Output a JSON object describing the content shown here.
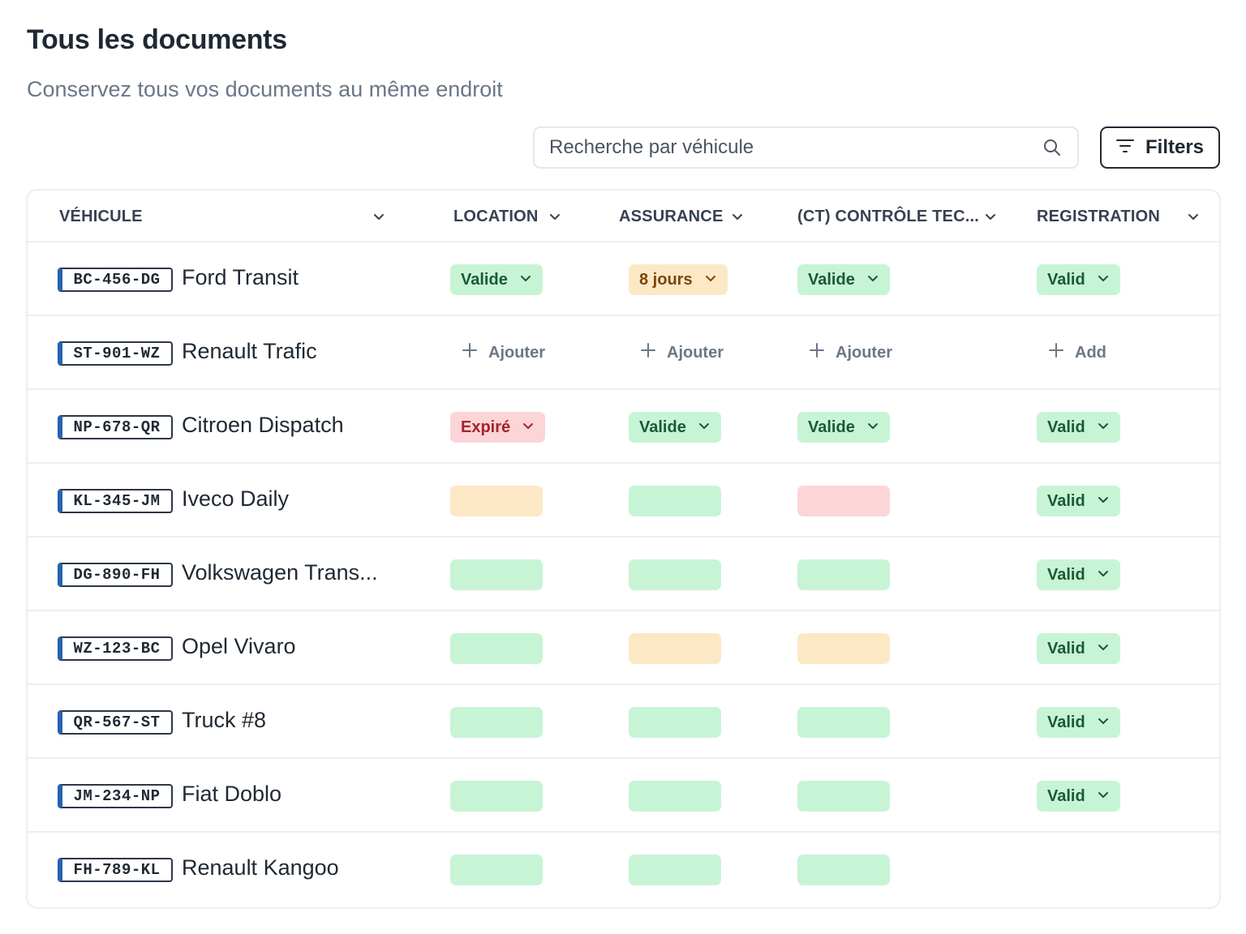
{
  "header": {
    "title": "Tous les documents",
    "subtitle": "Conservez tous vos documents au même endroit"
  },
  "search": {
    "placeholder": "Recherche par véhicule",
    "value": ""
  },
  "filters_label": "Filters",
  "columns": {
    "vehicle": "VÉHICULE",
    "location": "LOCATION",
    "assurance": "ASSURANCE",
    "ct": "(CT) CONTRÔLE TEC...",
    "registration": "REGISTRATION"
  },
  "rows": [
    {
      "plate": "BC-456-DG",
      "name": "Ford Transit",
      "location": {
        "label": "Valide",
        "status": "green"
      },
      "assurance": {
        "label": "8 jours",
        "status": "amber"
      },
      "ct": {
        "label": "Valide",
        "status": "green"
      },
      "registration": {
        "label": "Valid",
        "status": "green"
      }
    },
    {
      "plate": "ST-901-WZ",
      "name": "Renault Trafic",
      "location": {
        "add": "Ajouter"
      },
      "assurance": {
        "add": "Ajouter"
      },
      "ct": {
        "add": "Ajouter"
      },
      "registration": {
        "add": "Add"
      }
    },
    {
      "plate": "NP-678-QR",
      "name": "Citroen Dispatch",
      "location": {
        "label": "Expiré",
        "status": "red"
      },
      "assurance": {
        "label": "Valide",
        "status": "green"
      },
      "ct": {
        "label": "Valide",
        "status": "green"
      },
      "registration": {
        "label": "Valid",
        "status": "green"
      }
    },
    {
      "plate": "KL-345-JM",
      "name": "Iveco Daily",
      "location": {
        "status": "amber"
      },
      "assurance": {
        "status": "green"
      },
      "ct": {
        "status": "red"
      },
      "registration": {
        "label": "Valid",
        "status": "green"
      }
    },
    {
      "plate": "DG-890-FH",
      "name": "Volkswagen Trans...",
      "location": {
        "status": "green"
      },
      "assurance": {
        "status": "green"
      },
      "ct": {
        "status": "green"
      },
      "registration": {
        "label": "Valid",
        "status": "green"
      }
    },
    {
      "plate": "WZ-123-BC",
      "name": "Opel Vivaro",
      "location": {
        "status": "green"
      },
      "assurance": {
        "status": "amber"
      },
      "ct": {
        "status": "amber"
      },
      "registration": {
        "label": "Valid",
        "status": "green"
      }
    },
    {
      "plate": "QR-567-ST",
      "name": "Truck #8",
      "location": {
        "status": "green"
      },
      "assurance": {
        "status": "green"
      },
      "ct": {
        "status": "green"
      },
      "registration": {
        "label": "Valid",
        "status": "green"
      }
    },
    {
      "plate": "JM-234-NP",
      "name": "Fiat Doblo",
      "location": {
        "status": "green"
      },
      "assurance": {
        "status": "green"
      },
      "ct": {
        "status": "green"
      },
      "registration": {
        "label": "Valid",
        "status": "green"
      }
    },
    {
      "plate": "FH-789-KL",
      "name": "Renault Kangoo",
      "location": {
        "status": "green"
      },
      "assurance": {
        "status": "green"
      },
      "ct": {
        "status": "green"
      },
      "registration": {}
    }
  ],
  "colors": {
    "valid_bg": "#c8f4d6",
    "warning_bg": "#fde8c6",
    "expired_bg": "#fbd5d8",
    "plate_stripe": "#2563b0"
  }
}
